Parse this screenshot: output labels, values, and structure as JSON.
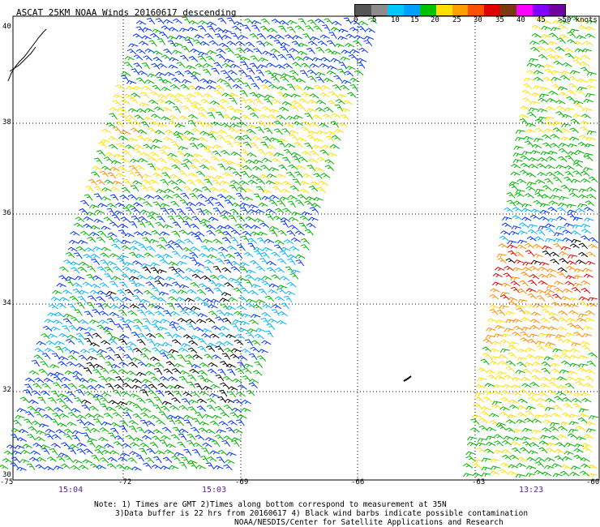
{
  "title": "ASCAT 25KM NOAA Winds 20160617 descending",
  "legend": {
    "labels": [
      "0",
      "5",
      "10",
      "15",
      "20",
      "25",
      "30",
      "35",
      "40",
      "45",
      ">50 knots"
    ],
    "colors": [
      "#555555",
      "#8c8c8c",
      "#00c8ff",
      "#00a0ff",
      "#00c000",
      "#ffe000",
      "#ffa000",
      "#ff5000",
      "#e00000",
      "#7a3a10",
      "#ff00ff",
      "#8000ff",
      "#7000a0"
    ]
  },
  "lat_labels": [
    "40",
    "38",
    "36",
    "34",
    "32",
    "30"
  ],
  "lon_labels": [
    "-75",
    "-72",
    "-69",
    "-66",
    "-63",
    "-60"
  ],
  "pass_times": [
    "15:04",
    "15:03",
    "13:23"
  ],
  "notes": [
    "Note: 1) Times are GMT 2)Times along bottom correspond to measurement at 35N",
    "3)Data buffer is 22 hrs from 20160617 4) Black wind barbs indicate possible contamination",
    "NOAA/NESDIS/Center for Satellite Applications and Research"
  ],
  "map": {
    "lon_range": [
      -75,
      -60
    ],
    "lat_range": [
      30,
      40
    ],
    "gridlines": true,
    "contamination_color": "#000000"
  }
}
